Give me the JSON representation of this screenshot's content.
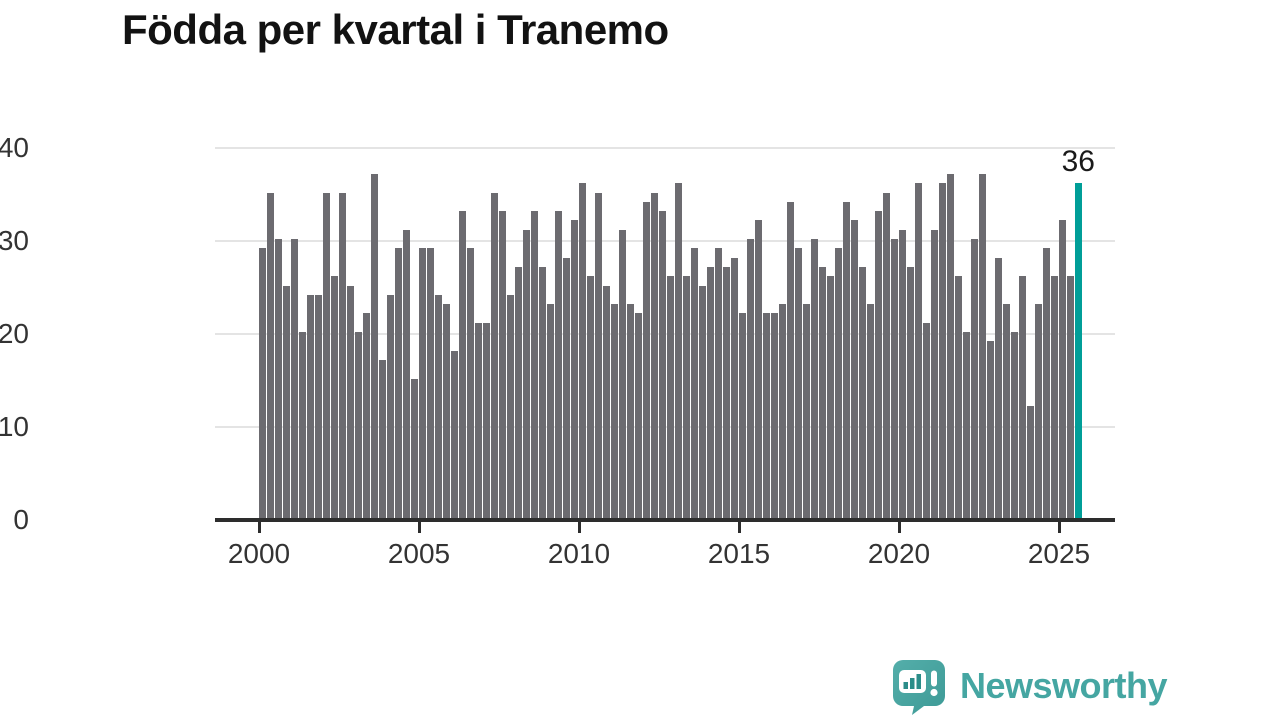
{
  "title": "Födda per kvartal i Tranemo",
  "annotation": {
    "label": "36"
  },
  "logo": {
    "text": "Newsworthy"
  },
  "colors": {
    "bar": "#6C6B70",
    "highlight": "#009E98",
    "grid": "#E4E4E4",
    "axis": "#2D2D2D",
    "tick_label": "#333333",
    "title": "#121212",
    "logo_teal": "#45A6A2"
  },
  "chart_data": {
    "type": "bar",
    "title": "Födda per kvartal i Tranemo",
    "x_unit": "quarter",
    "x_first": "2000 Q1",
    "x_last": "2025 Q3",
    "ylim": [
      0,
      40
    ],
    "y_ticks": [
      0,
      10,
      20,
      30,
      40
    ],
    "x_ticks": [
      "2000",
      "2005",
      "2010",
      "2015",
      "2020",
      "2025"
    ],
    "grid": true,
    "legend": false,
    "highlight": {
      "x": "2025 Q3",
      "value": 36,
      "label": "36",
      "color": "#009E98"
    },
    "years": [
      {
        "year": "2000",
        "values": [
          29,
          35,
          30,
          25
        ]
      },
      {
        "year": "2001",
        "values": [
          30,
          20,
          24,
          24
        ]
      },
      {
        "year": "2002",
        "values": [
          35,
          26,
          35,
          25
        ]
      },
      {
        "year": "2003",
        "values": [
          20,
          22,
          37,
          17
        ]
      },
      {
        "year": "2004",
        "values": [
          24,
          29,
          31,
          15
        ]
      },
      {
        "year": "2005",
        "values": [
          29,
          29,
          24,
          23
        ]
      },
      {
        "year": "2006",
        "values": [
          18,
          33,
          29,
          21
        ]
      },
      {
        "year": "2007",
        "values": [
          21,
          35,
          33,
          24
        ]
      },
      {
        "year": "2008",
        "values": [
          27,
          31,
          33,
          27
        ]
      },
      {
        "year": "2009",
        "values": [
          23,
          33,
          28,
          32
        ]
      },
      {
        "year": "2010",
        "values": [
          36,
          26,
          35,
          25
        ]
      },
      {
        "year": "2011",
        "values": [
          23,
          31,
          23,
          22
        ]
      },
      {
        "year": "2012",
        "values": [
          34,
          35,
          33,
          26
        ]
      },
      {
        "year": "2013",
        "values": [
          36,
          26,
          29,
          25
        ]
      },
      {
        "year": "2014",
        "values": [
          27,
          29,
          27,
          28
        ]
      },
      {
        "year": "2015",
        "values": [
          22,
          30,
          32,
          22
        ]
      },
      {
        "year": "2016",
        "values": [
          22,
          23,
          34,
          29
        ]
      },
      {
        "year": "2017",
        "values": [
          23,
          30,
          27,
          26
        ]
      },
      {
        "year": "2018",
        "values": [
          29,
          34,
          32,
          27
        ]
      },
      {
        "year": "2019",
        "values": [
          23,
          33,
          35,
          30
        ]
      },
      {
        "year": "2020",
        "values": [
          31,
          27,
          36,
          21
        ]
      },
      {
        "year": "2021",
        "values": [
          31,
          36,
          37,
          26
        ]
      },
      {
        "year": "2022",
        "values": [
          20,
          30,
          37,
          19
        ]
      },
      {
        "year": "2023",
        "values": [
          28,
          23,
          20,
          26
        ]
      },
      {
        "year": "2024",
        "values": [
          12,
          23,
          29,
          26
        ]
      },
      {
        "year": "2025",
        "values": [
          32,
          26,
          36
        ]
      }
    ]
  }
}
